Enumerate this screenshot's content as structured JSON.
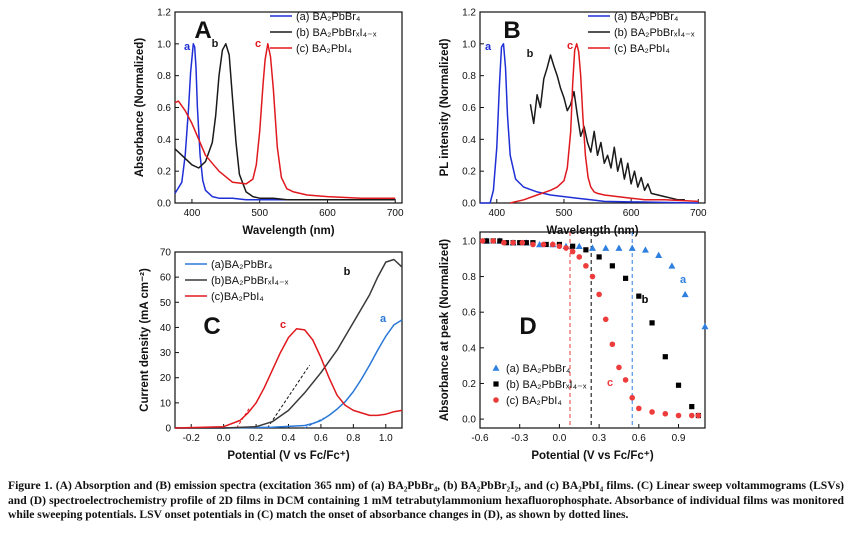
{
  "caption": {
    "lead": "Figure 1.",
    "text": "(A) Absorption and (B) emission spectra (excitation 365 nm) of (a) BA₂PbBr₄, (b) BA₂PbBr₂I₂, and (c) BA₂PbI₄ films. (C) Linear sweep voltammograms (LSVs) and (D) spectroelectrochemistry profile of 2D films in DCM containing 1 mM tetrabutylammonium hexafluorophosphate. Absorbance of individual films was monitored while sweeping potentials. LSV onset potentials in (C) match the onset of absorbance changes in (D), as shown by dotted lines."
  },
  "colors": {
    "a": "#1f2fd6",
    "b": "#1a1a1a",
    "c": "#e0191e",
    "a_D": "#2f7fe0",
    "a_C": "#2a78d8"
  },
  "chart_data": [
    {
      "panel": "A",
      "type": "line",
      "xlabel": "Wavelength (nm)",
      "ylabel": "Absorbance (Normalized)",
      "xlim": [
        375,
        710
      ],
      "ylim": [
        0,
        1.2
      ],
      "xticks": [
        400,
        500,
        600,
        700
      ],
      "yticks": [
        0.0,
        0.2,
        0.4,
        0.6,
        0.8,
        1.0,
        1.2
      ],
      "legend_position": "top-right",
      "series": [
        {
          "name": "(a) BA₂PbBr₄",
          "curve_label": "a",
          "x": [
            375,
            385,
            390,
            395,
            398,
            402,
            404,
            406,
            408,
            412,
            416,
            420,
            430,
            440,
            460,
            480,
            500,
            520,
            540,
            560,
            600,
            700
          ],
          "y": [
            0.06,
            0.13,
            0.3,
            0.6,
            0.82,
            1.0,
            0.98,
            0.85,
            0.6,
            0.3,
            0.14,
            0.08,
            0.04,
            0.03,
            0.03,
            0.02,
            0.02,
            0.02,
            0.02,
            0.02,
            0.02,
            0.02
          ]
        },
        {
          "name": "(b) BA₂PbBrₓI₄₋ₓ",
          "curve_label": "b",
          "x": [
            375,
            380,
            390,
            400,
            410,
            420,
            430,
            435,
            440,
            445,
            450,
            455,
            460,
            465,
            470,
            480,
            490,
            500,
            520,
            540,
            560,
            600,
            650,
            700
          ],
          "y": [
            0.34,
            0.32,
            0.28,
            0.24,
            0.22,
            0.26,
            0.38,
            0.55,
            0.8,
            0.96,
            1.0,
            0.93,
            0.65,
            0.38,
            0.18,
            0.07,
            0.04,
            0.03,
            0.03,
            0.02,
            0.02,
            0.02,
            0.02,
            0.02
          ]
        },
        {
          "name": "(c) BA₂PbI₄",
          "curve_label": "c",
          "x": [
            375,
            380,
            390,
            400,
            410,
            420,
            440,
            460,
            480,
            490,
            495,
            500,
            505,
            508,
            512,
            516,
            520,
            526,
            532,
            540,
            550,
            570,
            600,
            650,
            700
          ],
          "y": [
            0.63,
            0.64,
            0.58,
            0.5,
            0.4,
            0.3,
            0.2,
            0.13,
            0.12,
            0.15,
            0.24,
            0.45,
            0.75,
            0.9,
            1.0,
            0.92,
            0.72,
            0.35,
            0.16,
            0.09,
            0.07,
            0.05,
            0.04,
            0.03,
            0.03
          ]
        }
      ]
    },
    {
      "panel": "B",
      "type": "line",
      "xlabel": "Wavelength (nm)",
      "ylabel": "PL intensity (Normalized)",
      "xlim": [
        375,
        710
      ],
      "ylim": [
        0,
        1.2
      ],
      "xticks": [
        400,
        500,
        600,
        700
      ],
      "yticks": [
        0.0,
        0.2,
        0.4,
        0.6,
        0.8,
        1.0,
        1.2
      ],
      "legend_position": "top-right",
      "series": [
        {
          "name": "(a) BA₂PbBr₄",
          "curve_label": "a",
          "x": [
            375,
            390,
            395,
            400,
            404,
            407,
            410,
            413,
            416,
            420,
            428,
            440,
            460,
            480,
            500,
            520,
            540,
            560,
            700
          ],
          "y": [
            0.0,
            0.0,
            0.08,
            0.35,
            0.75,
            0.98,
            1.0,
            0.85,
            0.55,
            0.3,
            0.15,
            0.1,
            0.07,
            0.05,
            0.04,
            0.03,
            0.02,
            0.01,
            0.0
          ]
        },
        {
          "name": "(b) BA₂PbBrₓI₄₋ₓ",
          "curve_label": "b",
          "x": [
            450,
            455,
            460,
            465,
            470,
            475,
            480,
            485,
            490,
            495,
            500,
            505,
            510,
            515,
            520,
            525,
            530,
            535,
            540,
            545,
            550,
            555,
            560,
            565,
            570,
            575,
            580,
            585,
            590,
            595,
            600,
            605,
            610,
            615,
            620,
            625,
            630,
            640,
            650,
            660,
            670,
            680
          ],
          "y": [
            0.62,
            0.5,
            0.68,
            0.6,
            0.78,
            0.85,
            0.93,
            0.86,
            0.8,
            0.72,
            0.66,
            0.58,
            0.62,
            0.7,
            0.55,
            0.42,
            0.48,
            0.38,
            0.32,
            0.45,
            0.3,
            0.38,
            0.25,
            0.3,
            0.22,
            0.35,
            0.2,
            0.28,
            0.15,
            0.25,
            0.12,
            0.2,
            0.1,
            0.16,
            0.08,
            0.12,
            0.06,
            0.05,
            0.04,
            0.03,
            0.02,
            0.02
          ]
        },
        {
          "name": "(c) BA₂PbI₄",
          "curve_label": "c",
          "x": [
            420,
            440,
            460,
            480,
            490,
            500,
            505,
            510,
            513,
            516,
            519,
            522,
            525,
            528,
            532,
            536,
            540,
            545,
            550,
            560,
            580,
            600,
            620,
            650,
            700
          ],
          "y": [
            0.0,
            0.02,
            0.05,
            0.08,
            0.1,
            0.14,
            0.22,
            0.45,
            0.75,
            0.96,
            1.0,
            0.95,
            0.8,
            0.55,
            0.3,
            0.16,
            0.1,
            0.07,
            0.06,
            0.05,
            0.04,
            0.03,
            0.02,
            0.02,
            0.01
          ]
        }
      ]
    },
    {
      "panel": "C",
      "type": "line",
      "xlabel": "Potential (V vs Fc/Fc⁺)",
      "ylabel": "Current density (mA cm⁻²)",
      "xlim": [
        -0.3,
        1.1
      ],
      "ylim": [
        0,
        70
      ],
      "xticks": [
        -0.2,
        0.0,
        0.2,
        0.4,
        0.6,
        0.8,
        1.0
      ],
      "xtick_labels": [
        "-0.2",
        "0.0",
        "0.2",
        "0.4",
        "0.6",
        "0.8",
        "1.0"
      ],
      "yticks": [
        0,
        10,
        20,
        30,
        40,
        50,
        60,
        70
      ],
      "legend_position": "top-left",
      "series": [
        {
          "name": "(a)BA₂PbBr₄",
          "curve_label": "a",
          "x": [
            -0.3,
            0.0,
            0.3,
            0.5,
            0.55,
            0.6,
            0.65,
            0.7,
            0.75,
            0.8,
            0.85,
            0.9,
            0.95,
            1.0,
            1.05,
            1.1
          ],
          "y": [
            0,
            0,
            0.3,
            1.0,
            1.8,
            3.0,
            5.0,
            7.5,
            10.5,
            14.5,
            19.5,
            25,
            31,
            36.5,
            41,
            43
          ]
        },
        {
          "name": "(b)BA₂PbBrₓI₄₋ₓ",
          "curve_label": "b",
          "x": [
            -0.3,
            0.0,
            0.2,
            0.3,
            0.4,
            0.5,
            0.6,
            0.7,
            0.8,
            0.9,
            0.95,
            1.0,
            1.05,
            1.1
          ],
          "y": [
            0,
            0,
            0.5,
            2.5,
            7,
            14,
            22,
            31,
            42,
            53,
            60,
            66,
            67,
            64
          ]
        },
        {
          "name": "(c)BA₂PbI₄",
          "curve_label": "c",
          "x": [
            -0.3,
            0.0,
            0.1,
            0.15,
            0.2,
            0.25,
            0.3,
            0.35,
            0.4,
            0.45,
            0.5,
            0.55,
            0.6,
            0.65,
            0.7,
            0.75,
            0.8,
            0.85,
            0.9,
            0.95,
            1.0,
            1.05,
            1.1
          ],
          "y": [
            0,
            0.5,
            3,
            6,
            10,
            16,
            23,
            30,
            36,
            39.5,
            39,
            35,
            28,
            20,
            13,
            9,
            7,
            6,
            5,
            5,
            5.5,
            6.5,
            7
          ]
        }
      ],
      "onset_lines": [
        {
          "curve_label": "c",
          "x": [
            0.08,
            0.16
          ],
          "y": [
            0,
            8
          ]
        },
        {
          "curve_label": "b",
          "x": [
            0.27,
            0.53
          ],
          "y": [
            0,
            25
          ]
        },
        {
          "curve_label": "a",
          "x": [
            0.5,
            0.62
          ],
          "y": [
            0,
            4
          ]
        }
      ]
    },
    {
      "panel": "D",
      "type": "scatter",
      "xlabel": "Potential (V vs Fc/Fc⁺)",
      "ylabel": "Absorbance at peak (Normalized)",
      "xlim": [
        -0.6,
        1.1
      ],
      "ylim": [
        -0.05,
        1.05
      ],
      "xticks": [
        -0.6,
        -0.3,
        0.0,
        0.3,
        0.6,
        0.9
      ],
      "xtick_labels": [
        "-0.6",
        "-0.3",
        "0.0",
        "0.3",
        "0.6",
        "0.9"
      ],
      "yticks": [
        0.0,
        0.2,
        0.4,
        0.6,
        0.8,
        1.0
      ],
      "legend_position": "bottom-left",
      "vlines": [
        {
          "curve_label": "c",
          "x": 0.08
        },
        {
          "curve_label": "b",
          "x": 0.24
        },
        {
          "curve_label": "a",
          "x": 0.55
        }
      ],
      "series": [
        {
          "name": "(a)  BA₂PbBr₄",
          "curve_label": "a",
          "marker": "triangle",
          "x": [
            -0.55,
            -0.45,
            -0.35,
            -0.25,
            -0.15,
            -0.05,
            0.05,
            0.15,
            0.25,
            0.35,
            0.45,
            0.55,
            0.65,
            0.75,
            0.85,
            0.95,
            1.1
          ],
          "y": [
            1.0,
            1.0,
            0.99,
            0.99,
            0.98,
            0.98,
            0.97,
            0.97,
            0.96,
            0.96,
            0.96,
            0.96,
            0.95,
            0.92,
            0.86,
            0.7,
            0.52
          ]
        },
        {
          "name": "(b)  BA₂PbBrₓI₄₋ₓ",
          "curve_label": "b",
          "marker": "square",
          "x": [
            -0.55,
            -0.5,
            -0.45,
            -0.4,
            -0.35,
            -0.3,
            -0.25,
            -0.2,
            -0.1,
            0.0,
            0.1,
            0.2,
            0.3,
            0.4,
            0.5,
            0.6,
            0.7,
            0.8,
            0.9,
            1.0,
            1.05
          ],
          "y": [
            1.0,
            1.0,
            1.0,
            0.99,
            0.99,
            0.99,
            0.99,
            0.99,
            0.98,
            0.98,
            0.97,
            0.95,
            0.91,
            0.86,
            0.79,
            0.69,
            0.54,
            0.35,
            0.19,
            0.07,
            0.02
          ]
        },
        {
          "name": "(c)  BA₂PbI₄",
          "curve_label": "c",
          "marker": "circle",
          "x": [
            -0.58,
            -0.5,
            -0.42,
            -0.35,
            -0.28,
            -0.2,
            -0.12,
            -0.05,
            0.0,
            0.05,
            0.1,
            0.15,
            0.2,
            0.25,
            0.3,
            0.35,
            0.4,
            0.45,
            0.5,
            0.55,
            0.6,
            0.7,
            0.8,
            0.9,
            1.0,
            1.05
          ],
          "y": [
            1.0,
            1.0,
            0.99,
            0.99,
            0.99,
            0.98,
            0.98,
            0.98,
            0.97,
            0.96,
            0.94,
            0.91,
            0.86,
            0.8,
            0.7,
            0.56,
            0.42,
            0.29,
            0.22,
            0.12,
            0.06,
            0.04,
            0.03,
            0.02,
            0.02,
            0.02
          ]
        }
      ]
    }
  ]
}
